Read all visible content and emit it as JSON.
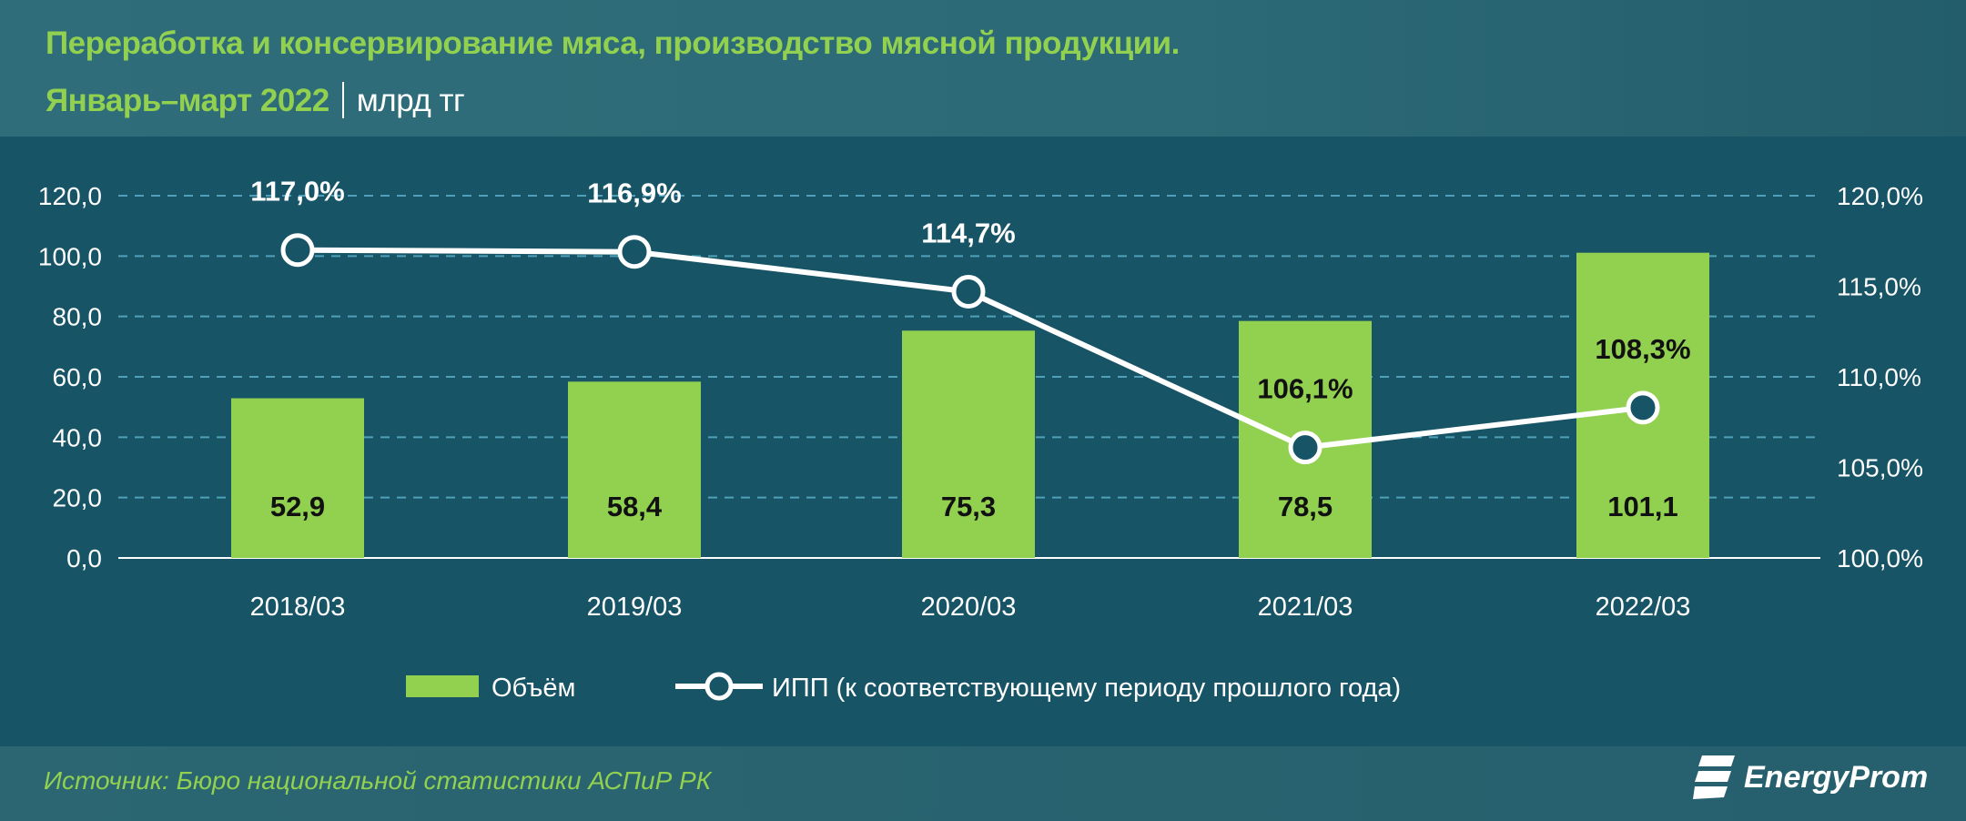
{
  "title": "Переработка и консервирование мяса, производство мясной продукции.",
  "subtitle_period": "Январь–март 2022",
  "subtitle_unit": "млрд тг",
  "source": "Источник: Бюро национальной статистики АСПиР РК",
  "logo_text": "EnergyProm",
  "colors": {
    "bar": "#92d050",
    "line": "#ffffff",
    "background": "#175466",
    "header": "#2e6a78",
    "title": "#92d050"
  },
  "chart_data": {
    "type": "bar+line",
    "categories": [
      "2018/03",
      "2019/03",
      "2020/03",
      "2021/03",
      "2022/03"
    ],
    "series": [
      {
        "name": "Объём",
        "type": "bar",
        "axis": "left",
        "values": [
          52.9,
          58.4,
          75.3,
          78.5,
          101.1
        ],
        "labels": [
          "52,9",
          "58,4",
          "75,3",
          "78,5",
          "101,1"
        ]
      },
      {
        "name": "ИПП (к соответствующему периоду прошлого года)",
        "type": "line",
        "axis": "right",
        "values": [
          117.0,
          116.9,
          114.7,
          106.1,
          108.3
        ],
        "labels": [
          "117,0%",
          "116,9%",
          "114,7%",
          "106,1%",
          "108,3%"
        ]
      }
    ],
    "left_axis": {
      "range": [
        0,
        120
      ],
      "ticks": [
        "0,0",
        "20,0",
        "40,0",
        "60,0",
        "80,0",
        "100,0",
        "120,0"
      ]
    },
    "right_axis": {
      "range": [
        100,
        120
      ],
      "ticks": [
        "100,0%",
        "105,0%",
        "110,0%",
        "115,0%",
        "120,0%"
      ]
    },
    "grid": true,
    "legend": "bottom"
  }
}
